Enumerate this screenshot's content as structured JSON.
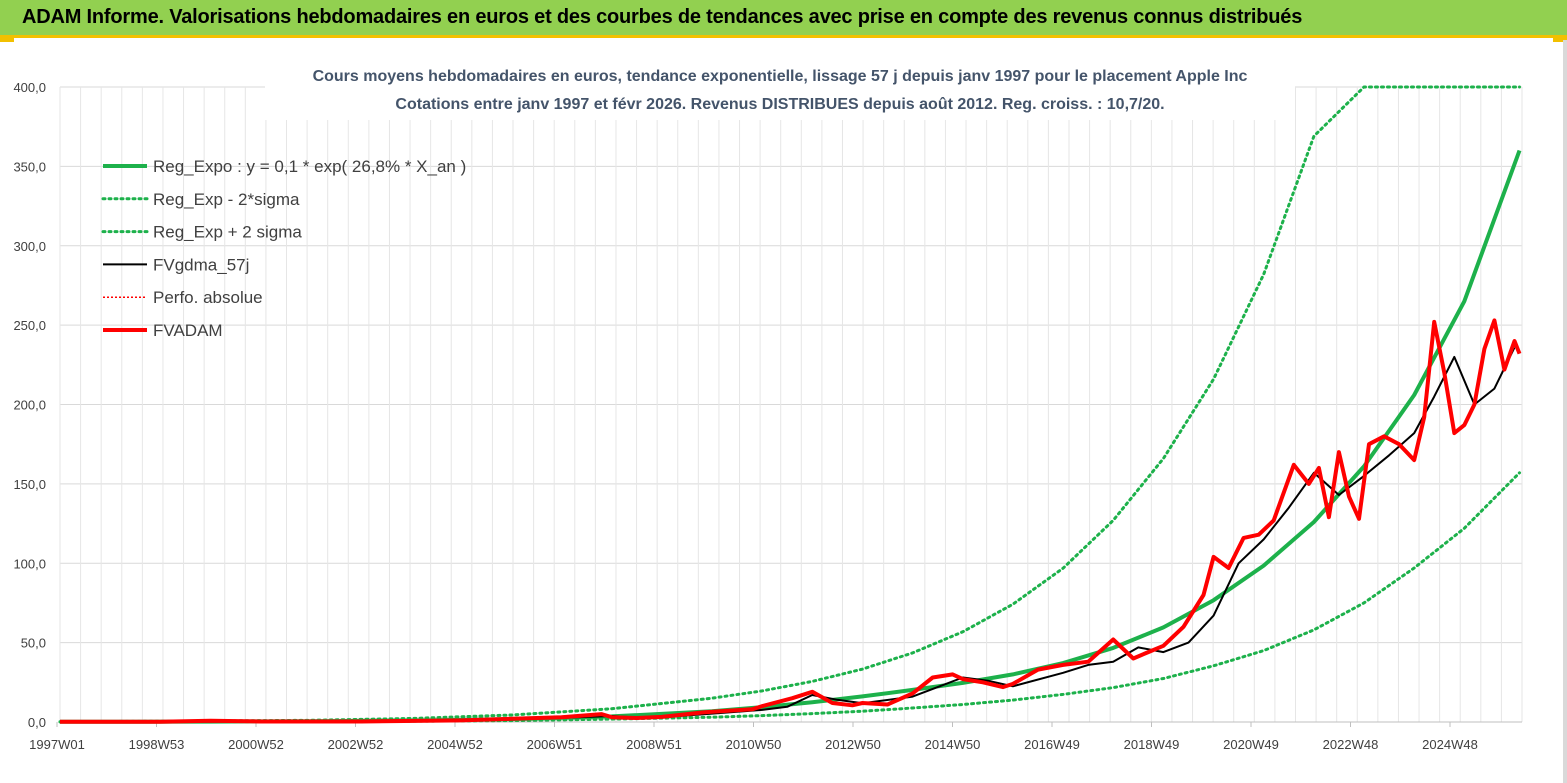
{
  "header": {
    "title": "ADAM Informe. Valorisations hebdomadaires en euros et des courbes de tendances avec prise en compte des revenus connus distribués"
  },
  "colors": {
    "header_bg": "#92d050",
    "header_border": "#f2c000",
    "trend_green": "#1db14b",
    "fvgdma_black": "#000000",
    "fvadam_red": "#ff0000"
  },
  "chart_data": {
    "type": "line",
    "title_line1": "Cours moyens hebdomadaires en euros, tendance exponentielle, lissage 57 j depuis janv 1997 pour le placement Apple Inc",
    "title_line2": "Cotations entre janv 1997 et févr 2026. Revenus DISTRIBUES depuis août 2012. Reg. croiss. : 10,7/20.",
    "ylim": [
      0,
      400
    ],
    "y_ticks": [
      "0,0",
      "50,0",
      "100,0",
      "150,0",
      "200,0",
      "250,0",
      "300,0",
      "350,0",
      "400,0"
    ],
    "x_ticks": [
      "1997W01",
      "1998W53",
      "2000W52",
      "2002W52",
      "2004W52",
      "2006W51",
      "2008W51",
      "2010W50",
      "2012W50",
      "2014W50",
      "2016W49",
      "2018W49",
      "2020W49",
      "2022W48",
      "2024W48"
    ],
    "xlim_years": [
      1997.0,
      2026.15
    ],
    "grid": true,
    "legend_position": "top-left",
    "series": [
      {
        "name": "Reg_Expo : y = 0,1 * exp( 26,8% *  X_an )",
        "style": "solid-thick",
        "color": "#1db14b",
        "x": [
          1997,
          2000,
          2002,
          2004,
          2006,
          2008,
          2010,
          2011,
          2012,
          2013,
          2014,
          2015,
          2016,
          2017,
          2018,
          2019,
          2020,
          2021,
          2022,
          2023,
          2024,
          2025,
          2026.1
        ],
        "y": [
          0.1,
          0.25,
          0.5,
          0.9,
          1.8,
          3.5,
          6.8,
          9.4,
          12.5,
          16.1,
          20.2,
          24.6,
          30.0,
          37.1,
          46.7,
          59.6,
          76.7,
          98.5,
          126.0,
          161.0,
          206.0,
          265.0,
          360.0
        ]
      },
      {
        "name": "Reg_Exp - 2*sigma",
        "style": "dotted",
        "color": "#1db14b",
        "x": [
          1997,
          2000,
          2002,
          2004,
          2006,
          2008,
          2010,
          2011,
          2012,
          2013,
          2014,
          2015,
          2016,
          2017,
          2018,
          2019,
          2020,
          2021,
          2022,
          2023,
          2024,
          2025,
          2026.1
        ],
        "y": [
          0.05,
          0.12,
          0.25,
          0.5,
          0.9,
          1.8,
          3.0,
          4.0,
          5.3,
          6.8,
          8.8,
          11.0,
          13.8,
          17.4,
          21.7,
          27.4,
          35.4,
          45.0,
          58.0,
          75.0,
          97.0,
          122.0,
          157.0
        ]
      },
      {
        "name": "Reg_Exp + 2 sigma",
        "style": "dotted",
        "color": "#1db14b",
        "x": [
          1997,
          2000,
          2002,
          2004,
          2006,
          2008,
          2010,
          2011,
          2012,
          2013,
          2014,
          2015,
          2016,
          2017,
          2018,
          2019,
          2020,
          2021,
          2022,
          2023,
          2024,
          2025,
          2026.1
        ],
        "y": [
          0.2,
          0.6,
          1.1,
          2.2,
          4.4,
          8.4,
          15.0,
          19.6,
          25.6,
          33.3,
          43.5,
          56.8,
          74.2,
          96.9,
          127.0,
          166.0,
          216.0,
          282.0,
          369.0,
          400.0,
          400.0,
          400.0,
          400.0
        ]
      },
      {
        "name": "FVgdma_57j",
        "style": "solid",
        "color": "#000000",
        "x": [
          1997,
          1999,
          2001,
          2003,
          2005,
          2006,
          2007,
          2008,
          2008.5,
          2009,
          2010,
          2011,
          2011.5,
          2012,
          2012.5,
          2013,
          2014,
          2014.5,
          2015,
          2015.5,
          2016,
          2017,
          2017.5,
          2018,
          2018.5,
          2019,
          2019.5,
          2020,
          2020.5,
          2021,
          2021.5,
          2022,
          2022.5,
          2023,
          2023.5,
          2024,
          2024.4,
          2024.8,
          2025.2,
          2025.6,
          2026.0
        ],
        "y": [
          0.1,
          0.2,
          0.3,
          0.3,
          0.8,
          1.5,
          2.6,
          3.8,
          2.8,
          3.0,
          5.3,
          7.6,
          9.6,
          17.0,
          14.0,
          11.8,
          16.0,
          22.0,
          28.0,
          26.0,
          22.5,
          31.0,
          36.0,
          38.0,
          47.0,
          44.0,
          50.0,
          67.0,
          100.0,
          115.0,
          135.0,
          157.0,
          143.0,
          155.0,
          168.0,
          182.0,
          205.0,
          230.0,
          200.0,
          210.0,
          236.0
        ]
      },
      {
        "name": "Perfo. absolue",
        "style": "dotted-thin",
        "color": "#ff0000",
        "x": [],
        "y": []
      },
      {
        "name": "FVADAM",
        "style": "solid-thick",
        "color": "#ff0000",
        "x": [
          1997,
          1999,
          2000,
          2001,
          2003,
          2005,
          2006,
          2007,
          2007.8,
          2008,
          2008.5,
          2009,
          2009.8,
          2010,
          2010.8,
          2011,
          2011.6,
          2012,
          2012.4,
          2012.8,
          2013,
          2013.5,
          2014,
          2014.4,
          2014.8,
          2015,
          2015.4,
          2015.8,
          2016,
          2016.5,
          2017,
          2017.5,
          2018,
          2018.4,
          2018.7,
          2019,
          2019.4,
          2019.8,
          2020,
          2020.3,
          2020.6,
          2020.9,
          2021.2,
          2021.6,
          2021.9,
          2022.1,
          2022.3,
          2022.5,
          2022.7,
          2022.9,
          2023.1,
          2023.4,
          2023.7,
          2024.0,
          2024.2,
          2024.4,
          2024.6,
          2024.8,
          2025.0,
          2025.2,
          2025.4,
          2025.6,
          2025.8,
          2026.0,
          2026.1
        ],
        "y": [
          0.1,
          0.2,
          0.8,
          0.3,
          0.3,
          1.0,
          2.0,
          3.0,
          5.0,
          3.0,
          2.5,
          3.2,
          6.0,
          6.5,
          8.0,
          10.0,
          15.0,
          19.0,
          12.0,
          10.5,
          12.0,
          11.0,
          18.0,
          28.0,
          30.0,
          27.0,
          25.0,
          22.0,
          24.0,
          33.0,
          36.0,
          38.0,
          52.0,
          40.0,
          44.0,
          48.0,
          60.0,
          80.0,
          104.0,
          97.0,
          116.0,
          118.0,
          127.0,
          162.0,
          150.0,
          160.0,
          129.0,
          170.0,
          142.0,
          128.0,
          175.0,
          180.0,
          175.0,
          165.0,
          192.0,
          252.0,
          220.0,
          182.0,
          187.0,
          200.0,
          235.0,
          253.0,
          222.0,
          240.0,
          232.0
        ]
      }
    ]
  }
}
